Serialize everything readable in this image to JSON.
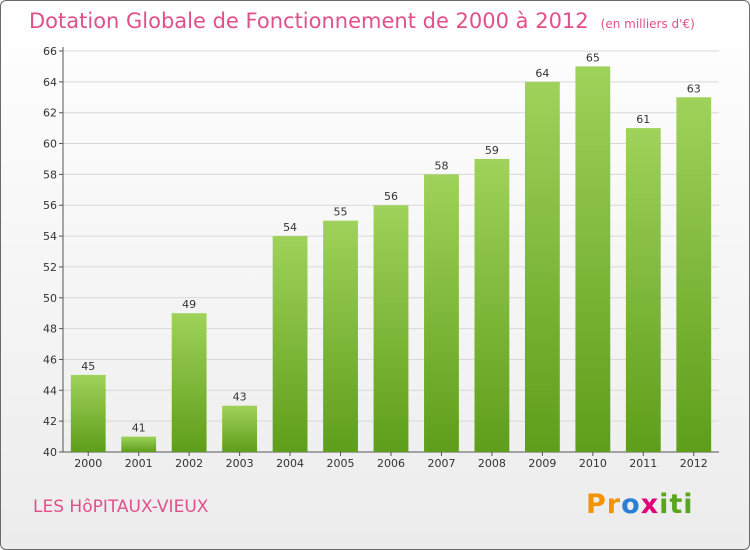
{
  "title": "Dotation Globale de Fonctionnement de 2000 à 2012",
  "units": "(en milliers d'€)",
  "commune": "LES HôPITAUX-VIEUX",
  "brand": {
    "text": "Proxiti",
    "letter_colors": [
      "#f29400",
      "#f29400",
      "#2a7fd4",
      "#e2007a",
      "#5aa51e",
      "#5aa51e",
      "#5aa51e"
    ]
  },
  "colors": {
    "title": "#e0508a",
    "bar_light": "#9fd25a",
    "bar_dark": "#5e9e1a",
    "grid": "#d8d8d8"
  },
  "chart_data": {
    "type": "bar",
    "title": "Dotation Globale de Fonctionnement de 2000 à 2012",
    "subtitle": "(en milliers d'€)",
    "categories": [
      "2000",
      "2001",
      "2002",
      "2003",
      "2004",
      "2005",
      "2006",
      "2007",
      "2008",
      "2009",
      "2010",
      "2011",
      "2012"
    ],
    "values": [
      45,
      41,
      49,
      43,
      54,
      55,
      56,
      58,
      59,
      64,
      65,
      61,
      63
    ],
    "ylim": [
      40,
      66
    ],
    "yticks": [
      40,
      42,
      44,
      46,
      48,
      50,
      52,
      54,
      56,
      58,
      60,
      62,
      64,
      66
    ],
    "grid": true,
    "data_labels": true
  }
}
